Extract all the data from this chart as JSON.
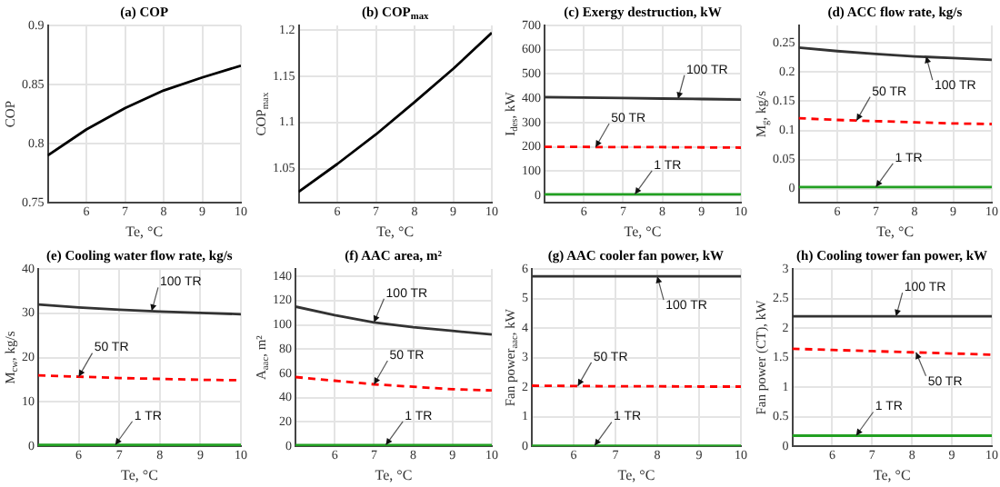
{
  "chart_data": [
    {
      "type": "line",
      "title": "(a) COP",
      "xlabel": "Te, °C",
      "ylabel": "COP",
      "x": [
        5,
        6,
        7,
        8,
        9,
        10
      ],
      "xlim": [
        5,
        10
      ],
      "xticks": [
        6,
        7,
        8,
        9,
        10
      ],
      "ylim": [
        0.75,
        0.9
      ],
      "yticks": [
        0.75,
        0.8,
        0.85,
        0.9
      ],
      "grid": true,
      "series": [
        {
          "color": "#000000",
          "values": [
            0.79,
            0.812,
            0.83,
            0.845,
            0.856,
            0.866
          ]
        }
      ]
    },
    {
      "type": "line",
      "title": "(b) COP$_{max}$",
      "xlabel": "Te, °C",
      "ylabel": "COP$_{max}$",
      "x": [
        5,
        6,
        7,
        8,
        9,
        10
      ],
      "xlim": [
        5,
        10
      ],
      "xticks": [
        6,
        7,
        8,
        9,
        10
      ],
      "ylim": [
        1.013,
        1.205
      ],
      "yticks": [
        1.05,
        1.1,
        1.15,
        1.2
      ],
      "grid": true,
      "series": [
        {
          "color": "#000000",
          "values": [
            1.025,
            1.055,
            1.087,
            1.122,
            1.158,
            1.197
          ]
        }
      ]
    },
    {
      "type": "line",
      "title": "(c) Exergy destruction, kW",
      "xlabel": "Te, °C",
      "ylabel": "I$_{des}$, kW",
      "x": [
        5,
        6,
        7,
        8,
        9,
        10
      ],
      "xlim": [
        5,
        10
      ],
      "xticks": [
        6,
        7,
        8,
        9,
        10
      ],
      "ylim": [
        -30,
        700
      ],
      "yticks": [
        0,
        100,
        200,
        300,
        400,
        500,
        600,
        700
      ],
      "grid": true,
      "series": [
        {
          "color": "#333333",
          "values": [
            405,
            403,
            401,
            399,
            397,
            395
          ]
        },
        {
          "color": "#ff0000",
          "line_style": "dashed",
          "values": [
            200,
            200,
            199,
            199,
            198,
            197
          ]
        },
        {
          "color": "#22a022",
          "values": [
            5,
            5,
            5,
            5,
            5,
            5
          ]
        }
      ],
      "annotations": [
        {
          "text": "100 TR",
          "x": 8.4,
          "y": 398
        },
        {
          "text": "50 TR",
          "x": 6.3,
          "y": 199
        },
        {
          "text": "1 TR",
          "x": 7.3,
          "y": 5
        }
      ]
    },
    {
      "type": "line",
      "title": "(d) ACC flow rate, kg/s",
      "xlabel": "Te, °C",
      "ylabel": "M$_{g}$, kg/s",
      "x": [
        5,
        6,
        7,
        8,
        9,
        10
      ],
      "xlim": [
        5,
        10
      ],
      "xticks": [
        6,
        7,
        8,
        9,
        10
      ],
      "ylim": [
        -0.024,
        0.28
      ],
      "yticks": [
        0,
        0.05,
        0.1,
        0.15,
        0.2,
        0.25
      ],
      "grid": true,
      "series": [
        {
          "color": "#333333",
          "values": [
            0.242,
            0.236,
            0.231,
            0.227,
            0.224,
            0.221
          ]
        },
        {
          "color": "#ff0000",
          "line_style": "dashed",
          "values": [
            0.121,
            0.118,
            0.116,
            0.114,
            0.112,
            0.111
          ]
        },
        {
          "color": "#22a022",
          "values": [
            0.003,
            0.003,
            0.003,
            0.003,
            0.003,
            0.003
          ]
        }
      ],
      "annotations": [
        {
          "text": "100 TR",
          "x": 8.3,
          "y": 0.227
        },
        {
          "text": "50 TR",
          "x": 6.5,
          "y": 0.117
        },
        {
          "text": "1 TR",
          "x": 7,
          "y": 0.003
        }
      ]
    },
    {
      "type": "line",
      "title": "(e) Cooling water flow rate, kg/s",
      "xlabel": "Te, °C",
      "ylabel": "M$_{cw}$, kg/s",
      "x": [
        5,
        6,
        7,
        8,
        9,
        10
      ],
      "xlim": [
        5,
        10
      ],
      "xticks": [
        6,
        7,
        8,
        9,
        10
      ],
      "ylim": [
        0,
        40
      ],
      "yticks": [
        0,
        10,
        20,
        30,
        40
      ],
      "grid": true,
      "series": [
        {
          "color": "#333333",
          "values": [
            32,
            31.3,
            30.8,
            30.4,
            30.1,
            29.8
          ]
        },
        {
          "color": "#ff0000",
          "line_style": "dashed",
          "values": [
            16,
            15.7,
            15.4,
            15.2,
            15,
            14.9
          ]
        },
        {
          "color": "#22a022",
          "values": [
            0.3,
            0.3,
            0.3,
            0.3,
            0.3,
            0.3
          ]
        }
      ],
      "annotations": [
        {
          "text": "100 TR",
          "x": 7.8,
          "y": 30.5
        },
        {
          "text": "50 TR",
          "x": 6,
          "y": 15.7
        },
        {
          "text": "1 TR",
          "x": 6.9,
          "y": 0.3
        }
      ]
    },
    {
      "type": "line",
      "title": "(f) AAC area, m²",
      "xlabel": "Te, °C",
      "ylabel": "A$_{aac}$, m²",
      "x": [
        5,
        6,
        7,
        8,
        9,
        10
      ],
      "xlim": [
        5,
        10
      ],
      "xticks": [
        6,
        7,
        8,
        9,
        10
      ],
      "ylim": [
        0,
        146
      ],
      "yticks": [
        0,
        20,
        40,
        60,
        80,
        100,
        120,
        140
      ],
      "grid": true,
      "series": [
        {
          "color": "#333333",
          "values": [
            115,
            108,
            102,
            98,
            95,
            92
          ]
        },
        {
          "color": "#ff0000",
          "line_style": "dashed",
          "values": [
            57,
            54,
            51,
            49,
            47,
            46
          ]
        },
        {
          "color": "#22a022",
          "values": [
            1,
            1,
            1,
            1,
            1,
            1
          ]
        }
      ],
      "annotations": [
        {
          "text": "100 TR",
          "x": 7,
          "y": 102
        },
        {
          "text": "50 TR",
          "x": 7,
          "y": 51
        },
        {
          "text": "1 TR",
          "x": 7.3,
          "y": 1
        }
      ]
    },
    {
      "type": "line",
      "title": "(g) AAC cooler fan power, kW",
      "xlabel": "Te, °C",
      "ylabel": "Fan power$_{aac}$, kW",
      "x": [
        5,
        6,
        7,
        8,
        9,
        10
      ],
      "xlim": [
        5,
        10
      ],
      "xticks": [
        6,
        7,
        8,
        9,
        10
      ],
      "ylim": [
        0,
        6
      ],
      "yticks": [
        0,
        1,
        2,
        3,
        4,
        5,
        6
      ],
      "grid": true,
      "series": [
        {
          "color": "#333333",
          "values": [
            5.75,
            5.75,
            5.75,
            5.75,
            5.75,
            5.75
          ]
        },
        {
          "color": "#ff0000",
          "line_style": "dashed",
          "values": [
            2.05,
            2.04,
            2.03,
            2.03,
            2.02,
            2.02
          ]
        },
        {
          "color": "#22a022",
          "values": [
            0.02,
            0.02,
            0.02,
            0.02,
            0.02,
            0.02
          ]
        }
      ],
      "annotations": [
        {
          "text": "100 TR",
          "x": 8,
          "y": 5.75
        },
        {
          "text": "50 TR",
          "x": 6.1,
          "y": 2.04
        },
        {
          "text": "1 TR",
          "x": 6.5,
          "y": 0.02
        }
      ]
    },
    {
      "type": "line",
      "title": "(h) Cooling tower fan power, kW",
      "xlabel": "Te, °C",
      "ylabel": "Fan power (CT), kW",
      "x": [
        5,
        6,
        7,
        8,
        9,
        10
      ],
      "xlim": [
        5,
        10
      ],
      "xticks": [
        6,
        7,
        8,
        9,
        10
      ],
      "ylim": [
        0,
        3
      ],
      "yticks": [
        0,
        0.5,
        1,
        1.5,
        2,
        2.5,
        3
      ],
      "grid": true,
      "series": [
        {
          "color": "#333333",
          "values": [
            2.2,
            2.2,
            2.2,
            2.2,
            2.2,
            2.2
          ]
        },
        {
          "color": "#ff0000",
          "line_style": "dashed",
          "values": [
            1.65,
            1.63,
            1.61,
            1.59,
            1.57,
            1.55
          ]
        },
        {
          "color": "#22a022",
          "values": [
            0.18,
            0.18,
            0.18,
            0.18,
            0.18,
            0.18
          ]
        }
      ],
      "annotations": [
        {
          "text": "100 TR",
          "x": 7.6,
          "y": 2.2
        },
        {
          "text": "50 TR",
          "x": 8.1,
          "y": 1.59
        },
        {
          "text": "1 TR",
          "x": 6.6,
          "y": 0.18
        }
      ]
    }
  ]
}
